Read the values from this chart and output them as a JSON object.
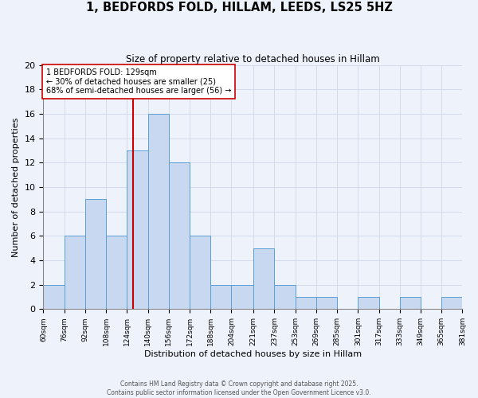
{
  "title": "1, BEDFORDS FOLD, HILLAM, LEEDS, LS25 5HZ",
  "subtitle": "Size of property relative to detached houses in Hillam",
  "xlabel": "Distribution of detached houses by size in Hillam",
  "ylabel": "Number of detached properties",
  "bin_edges": [
    60,
    76,
    92,
    108,
    124,
    140,
    156,
    172,
    188,
    204,
    221,
    237,
    253,
    269,
    285,
    301,
    317,
    333,
    349,
    365,
    381
  ],
  "bar_heights": [
    2,
    6,
    9,
    6,
    13,
    16,
    12,
    6,
    2,
    2,
    5,
    2,
    1,
    1,
    0,
    1,
    0,
    1,
    0,
    1
  ],
  "bar_color": "#c8d8f0",
  "bar_edge_color": "#5a9fd4",
  "property_size": 129,
  "vline_color": "#cc0000",
  "annotation_line1": "1 BEDFORDS FOLD: 129sqm",
  "annotation_line2": "← 30% of detached houses are smaller (25)",
  "annotation_line3": "68% of semi-detached houses are larger (56) →",
  "annotation_box_color": "#ffffff",
  "annotation_box_edge_color": "#cc0000",
  "ylim": [
    0,
    20
  ],
  "yticks": [
    0,
    2,
    4,
    6,
    8,
    10,
    12,
    14,
    16,
    18,
    20
  ],
  "background_color": "#eef2fb",
  "grid_color": "#d0d8e8",
  "footer_line1": "Contains HM Land Registry data © Crown copyright and database right 2025.",
  "footer_line2": "Contains public sector information licensed under the Open Government Licence v3.0."
}
